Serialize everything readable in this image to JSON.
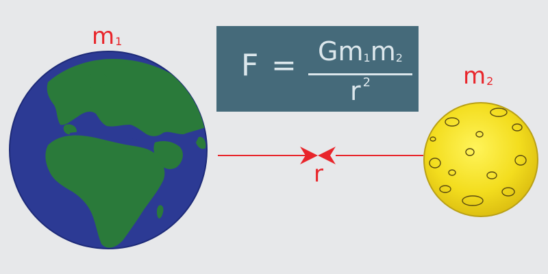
{
  "labels": {
    "mass1": {
      "main": "m",
      "sub": "1"
    },
    "mass2": {
      "main": "m",
      "sub": "2"
    },
    "distance": "r"
  },
  "formula": {
    "lhs": "F",
    "equals": "=",
    "numerator": {
      "g": "G",
      "m_a": "m",
      "sub_a": "1",
      "m_b": "m",
      "sub_b": "2"
    },
    "denominator": {
      "r": "r",
      "exp": "2"
    }
  },
  "colors": {
    "background": "#e7e8ea",
    "accent_red": "#e8252b",
    "formula_box": "#456a7a",
    "formula_text": "#dce7ec",
    "ocean": "#2c3a94",
    "land": "#2a7a3a",
    "moon": "#f3dd1e"
  },
  "icons": {
    "earth": "earth-globe-icon",
    "moon": "moon-icon",
    "arrow": "arrowhead-icon"
  }
}
